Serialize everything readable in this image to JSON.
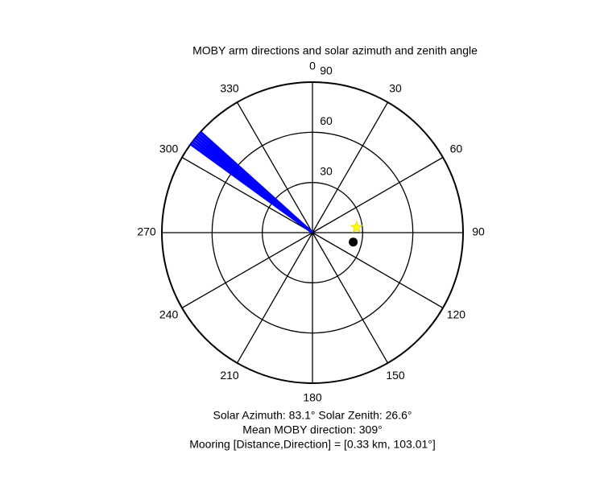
{
  "chart_data": {
    "type": "polar",
    "title": "MOBY arm directions and solar azimuth and zenith angle",
    "rlim": [
      0,
      90
    ],
    "rticks": [
      30,
      60,
      90
    ],
    "thetaticks": [
      0,
      30,
      60,
      90,
      120,
      150,
      180,
      210,
      240,
      270,
      300,
      330
    ],
    "arm_directions": {
      "color": "#0000ff",
      "values": [
        306,
        307,
        308,
        309,
        310,
        311,
        312
      ]
    },
    "sun": {
      "azimuth": 83.1,
      "zenith": 26.6,
      "color": "#ffff00"
    },
    "mooring": {
      "direction": 103.01,
      "r": 25,
      "color": "#000000"
    },
    "annotations": [
      "Solar Azimuth: 83.1°   Solar Zenith: 26.6°",
      "Mean MOBY direction: 309°",
      "Mooring [Distance,Direction] = [0.33 km, 103.01°]"
    ]
  }
}
